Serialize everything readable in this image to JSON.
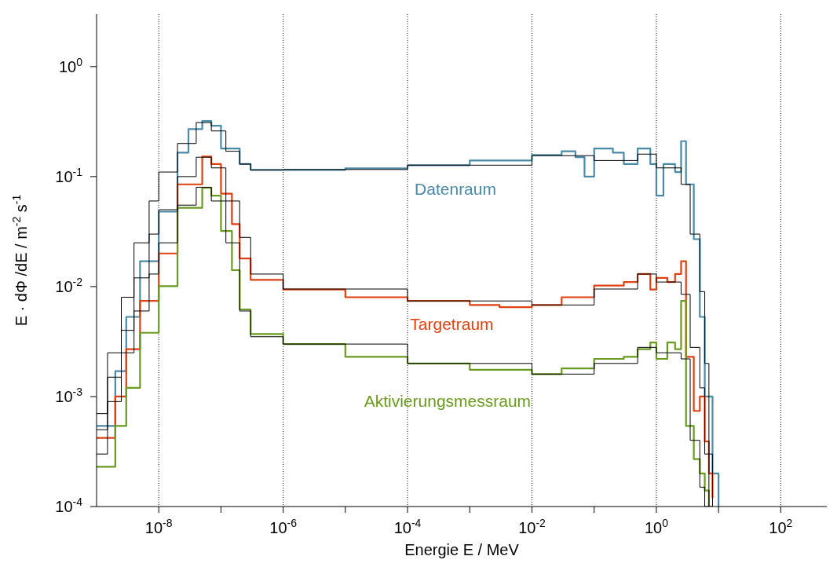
{
  "chart_data": {
    "type": "step",
    "xlabel": "Energie E / MeV",
    "ylabel": "E · dΦ /dE / m$^{-2}$ s$^{-1}$",
    "log": "xy",
    "grid": "x",
    "legend": false,
    "line_style": "solid",
    "marker": "none",
    "xlim": [
      1e-09,
      550
    ],
    "ylim": [
      0.0001,
      3
    ],
    "xticks": [
      {
        "value": 1e-08,
        "label": "10$^{-8}$"
      },
      {
        "value": 1e-07,
        "label": null
      },
      {
        "value": 1e-06,
        "label": "10$^{-6}$"
      },
      {
        "value": 1e-05,
        "label": null
      },
      {
        "value": 0.0001,
        "label": "10$^{-4}$"
      },
      {
        "value": 0.001,
        "label": null
      },
      {
        "value": 0.01,
        "label": "10$^{-2}$"
      },
      {
        "value": 0.1,
        "label": null
      },
      {
        "value": 1,
        "label": "10$^{0}$"
      },
      {
        "value": 10,
        "label": null
      },
      {
        "value": 100,
        "label": "10$^{2}$"
      }
    ],
    "yticks": [
      {
        "value": 0.0001,
        "label": "10$^{-4}$"
      },
      {
        "value": 0.001,
        "label": "10$^{-3}$"
      },
      {
        "value": 0.01,
        "label": "10$^{-2}$"
      },
      {
        "value": 0.1,
        "label": "10$^{-1}$"
      },
      {
        "value": 1,
        "label": "10$^{0}$"
      }
    ],
    "series": [
      {
        "name": "Datenraum",
        "color": "#4a8aa8",
        "x": [
          1e-09,
          2e-09,
          3e-09,
          5e-09,
          1e-08,
          2e-08,
          3e-08,
          5e-08,
          7e-08,
          1e-07,
          2e-07,
          3e-07,
          1e-06,
          1e-05,
          0.0001,
          0.001,
          0.01,
          0.03,
          0.05,
          0.07,
          0.1,
          0.2,
          0.3,
          0.5,
          0.8,
          1,
          1.3,
          2,
          2.5,
          3,
          4,
          5,
          6,
          8,
          10
        ],
        "values": [
          0.00054,
          0.0017,
          0.0053,
          0.017,
          0.048,
          0.165,
          0.27,
          0.32,
          0.29,
          0.18,
          0.13,
          0.115,
          0.115,
          0.119,
          0.127,
          0.14,
          0.157,
          0.17,
          0.15,
          0.1,
          0.18,
          0.165,
          0.13,
          0.18,
          0.13,
          0.067,
          0.13,
          0.11,
          0.21,
          0.085,
          0.027,
          0.0053,
          0.001,
          0.0002,
          0.0001
        ]
      },
      {
        "name": "Targetraum",
        "color": "#e04010",
        "x": [
          1e-09,
          2e-09,
          3e-09,
          5e-09,
          1e-08,
          2e-08,
          5e-08,
          7e-08,
          1e-07,
          1.5e-07,
          2e-07,
          3e-07,
          1e-06,
          1e-05,
          0.0001,
          0.001,
          0.003,
          0.01,
          0.03,
          0.1,
          0.3,
          0.5,
          0.8,
          1,
          1.5,
          2,
          2.5,
          3,
          4,
          5,
          6,
          7,
          8
        ],
        "values": [
          0.00042,
          0.001,
          0.0027,
          0.0074,
          0.02,
          0.085,
          0.152,
          0.13,
          0.07,
          0.037,
          0.018,
          0.0115,
          0.0094,
          0.008,
          0.0074,
          0.0068,
          0.0065,
          0.0068,
          0.008,
          0.0102,
          0.011,
          0.013,
          0.0094,
          0.012,
          0.011,
          0.013,
          0.017,
          0.0023,
          0.00074,
          0.001,
          0.00039,
          0.0002,
          0.00012
        ]
      },
      {
        "name": "Aktivierungsmessraum",
        "color": "#6a9a20",
        "x": [
          1e-09,
          2e-09,
          3e-09,
          5e-09,
          1e-08,
          2e-08,
          5e-08,
          7e-08,
          1e-07,
          1.5e-07,
          2e-07,
          3e-07,
          1e-06,
          1e-05,
          0.0001,
          0.001,
          0.01,
          0.03,
          0.1,
          0.3,
          0.5,
          0.8,
          1,
          1.5,
          2,
          2.5,
          3,
          4,
          5,
          6,
          7
        ],
        "values": [
          0.00023,
          0.00054,
          0.0012,
          0.0038,
          0.0101,
          0.052,
          0.079,
          0.067,
          0.032,
          0.0141,
          0.0062,
          0.0037,
          0.003,
          0.0023,
          0.002,
          0.00175,
          0.0016,
          0.0018,
          0.0022,
          0.0023,
          0.0027,
          0.0031,
          0.0022,
          0.0031,
          0.0027,
          0.0074,
          0.00054,
          0.00027,
          0.0002,
          0.00014,
          0.0001
        ]
      },
      {
        "color": "#000000",
        "x": [
          1e-09,
          1.5e-09,
          2.5e-09,
          4e-09,
          7e-09,
          1e-08,
          2e-08,
          4e-08,
          7e-08,
          1.2e-07,
          2e-07,
          3e-07,
          1e-06,
          0.0001,
          0.01,
          0.1,
          0.5,
          1,
          2.5,
          3.5,
          5,
          6,
          7,
          8
        ],
        "values": [
          0.0007,
          0.0025,
          0.008,
          0.025,
          0.06,
          0.11,
          0.2,
          0.31,
          0.26,
          0.17,
          0.13,
          0.115,
          0.116,
          0.127,
          0.155,
          0.14,
          0.16,
          0.12,
          0.085,
          0.03,
          0.009,
          0.002,
          0.0003,
          0.0001
        ]
      },
      {
        "color": "#000000",
        "x": [
          1e-09,
          1.5e-09,
          2.5e-09,
          4e-09,
          7e-09,
          1e-08,
          2e-08,
          4e-08,
          7e-08,
          1.2e-07,
          2e-07,
          3e-07,
          1e-06,
          0.0001,
          0.01,
          0.1,
          0.5,
          1,
          2.5,
          3.5,
          5,
          6,
          7,
          8
        ],
        "values": [
          0.0005,
          0.0015,
          0.004,
          0.012,
          0.03,
          0.05,
          0.1,
          0.15,
          0.12,
          0.06,
          0.028,
          0.013,
          0.0095,
          0.0074,
          0.0068,
          0.0095,
          0.013,
          0.011,
          0.0085,
          0.0028,
          0.0012,
          0.0003,
          0.0001,
          0.0001
        ]
      },
      {
        "color": "#000000",
        "x": [
          1e-09,
          1.5e-09,
          2.5e-09,
          4e-09,
          7e-09,
          1e-08,
          2e-08,
          4e-08,
          7e-08,
          1.2e-07,
          2e-07,
          3e-07,
          1e-06,
          0.0001,
          0.01,
          0.1,
          0.5,
          1,
          2.5,
          3.5,
          5,
          6,
          7
        ],
        "values": [
          0.0003,
          0.0009,
          0.0025,
          0.006,
          0.013,
          0.025,
          0.055,
          0.08,
          0.06,
          0.025,
          0.006,
          0.0035,
          0.003,
          0.002,
          0.0016,
          0.002,
          0.0028,
          0.0025,
          0.0022,
          0.0004,
          0.00015,
          0.0001,
          0.0001
        ]
      }
    ]
  }
}
